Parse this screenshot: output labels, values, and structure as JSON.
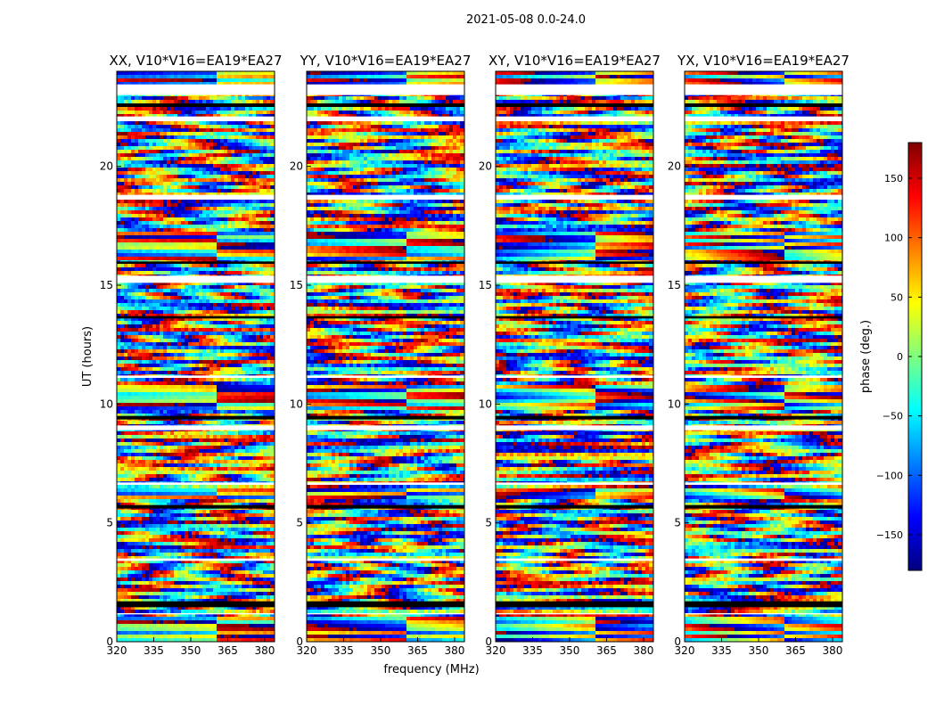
{
  "figure_title": "2021-05-08 0.0-24.0",
  "chart_data": [
    {
      "type": "heatmap",
      "title": "XX, V10*V16=EA19*EA27",
      "ylabel": "UT (hours)",
      "xlim": [
        320,
        384
      ],
      "ylim": [
        0,
        24
      ],
      "xticks": [
        "320",
        "335",
        "350",
        "365",
        "380"
      ],
      "yticks": [
        "0",
        "5",
        "10",
        "15",
        "20"
      ]
    },
    {
      "type": "heatmap",
      "title": "YY, V10*V16=EA19*EA27",
      "xlabel": "frequency (MHz)",
      "xlim": [
        320,
        384
      ],
      "ylim": [
        0,
        24
      ],
      "xticks": [
        "320",
        "335",
        "350",
        "365",
        "380"
      ],
      "yticks": [
        "0",
        "5",
        "10",
        "15",
        "20"
      ]
    },
    {
      "type": "heatmap",
      "title": "XY, V10*V16=EA19*EA27",
      "xlim": [
        320,
        384
      ],
      "ylim": [
        0,
        24
      ],
      "xticks": [
        "320",
        "335",
        "350",
        "365",
        "380"
      ],
      "yticks": [
        "0",
        "5",
        "10",
        "15",
        "20"
      ]
    },
    {
      "type": "heatmap",
      "title": "YX, V10*V16=EA19*EA27",
      "xlim": [
        320,
        384
      ],
      "ylim": [
        0,
        24
      ],
      "xticks": [
        "320",
        "335",
        "350",
        "365",
        "380"
      ],
      "yticks": [
        "0",
        "5",
        "10",
        "15",
        "20"
      ]
    }
  ],
  "colorbar": {
    "label": "phase (deg.)",
    "range": [
      -180,
      180
    ],
    "ticks": [
      "150",
      "100",
      "50",
      "0",
      "−50",
      "−100",
      "−150"
    ],
    "tick_values": [
      150,
      100,
      50,
      0,
      -50,
      -100,
      -150
    ]
  },
  "colors": {
    "jet": [
      "#00007f",
      "#0000ff",
      "#007fff",
      "#00ffff",
      "#7fff7f",
      "#ffff00",
      "#ff7f00",
      "#ff0000",
      "#7f0000"
    ]
  }
}
